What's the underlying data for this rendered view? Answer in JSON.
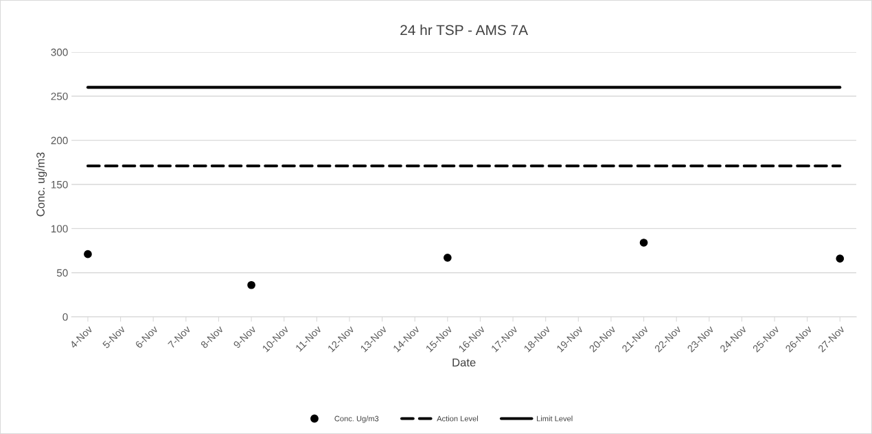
{
  "chart_data": {
    "type": "line",
    "title": "24 hr TSP - AMS 7A",
    "xlabel": "Date",
    "ylabel": "Conc. ug/m3",
    "categories": [
      "4-Nov",
      "5-Nov",
      "6-Nov",
      "7-Nov",
      "8-Nov",
      "9-Nov",
      "10-Nov",
      "11-Nov",
      "12-Nov",
      "13-Nov",
      "14-Nov",
      "15-Nov",
      "16-Nov",
      "17-Nov",
      "18-Nov",
      "19-Nov",
      "20-Nov",
      "21-Nov",
      "22-Nov",
      "23-Nov",
      "24-Nov",
      "25-Nov",
      "26-Nov",
      "27-Nov"
    ],
    "series": [
      {
        "name": "Conc. Ug/m3",
        "type": "scatter",
        "marker": "circle",
        "color": "#000000",
        "values": [
          71,
          null,
          null,
          null,
          null,
          36,
          null,
          null,
          null,
          null,
          null,
          67,
          null,
          null,
          null,
          null,
          null,
          84,
          null,
          null,
          null,
          null,
          null,
          66
        ]
      },
      {
        "name": "Action Level",
        "line_style": "dashed",
        "color": "#000000",
        "values": [
          171,
          171,
          171,
          171,
          171,
          171,
          171,
          171,
          171,
          171,
          171,
          171,
          171,
          171,
          171,
          171,
          171,
          171,
          171,
          171,
          171,
          171,
          171,
          171
        ]
      },
      {
        "name": "Limit Level",
        "line_style": "solid",
        "color": "#000000",
        "values": [
          260,
          260,
          260,
          260,
          260,
          260,
          260,
          260,
          260,
          260,
          260,
          260,
          260,
          260,
          260,
          260,
          260,
          260,
          260,
          260,
          260,
          260,
          260,
          260
        ]
      }
    ],
    "ylim": [
      0,
      300
    ],
    "yticks": [
      0,
      50,
      100,
      150,
      200,
      250,
      300
    ],
    "grid": "y",
    "legend": "bottom"
  }
}
